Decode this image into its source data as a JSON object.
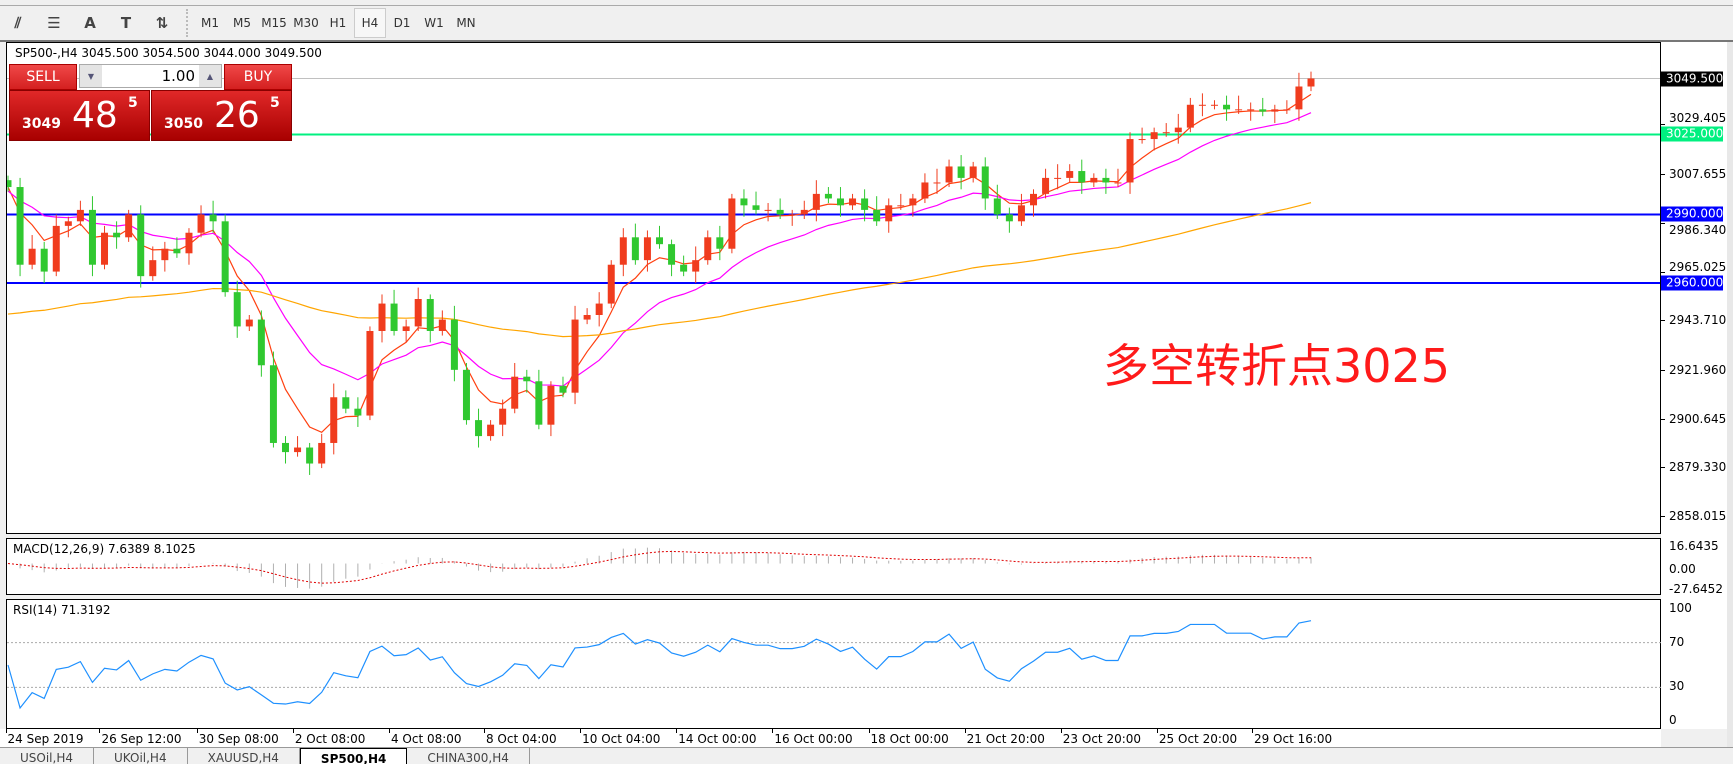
{
  "toolbar": {
    "icons": [
      "elliott-wave-icon",
      "fibonacci-fan-icon",
      "text-icon",
      "text-label-icon",
      "arrows-icon"
    ],
    "icon_glyphs": [
      "⫽",
      "☰",
      "A",
      "T",
      "⇅"
    ],
    "timeframes": [
      "M1",
      "M5",
      "M15",
      "M30",
      "H1",
      "H4",
      "D1",
      "W1",
      "MN"
    ],
    "active_timeframe": "H4"
  },
  "chart": {
    "title": "SP500-,H4  3045.500 3054.500 3044.000 3049.500",
    "annotation": "多空转折点3025",
    "trade_panel": {
      "sell_label": "SELL",
      "buy_label": "BUY",
      "volume": "1.00",
      "sell_price_main": "3049",
      "sell_price_big": "48",
      "sell_price_sup": "5",
      "buy_price_main": "3050",
      "buy_price_big": "26",
      "buy_price_sup": "5"
    },
    "price_axis": [
      "3029.405",
      "3007.655",
      "2986.340",
      "2965.025",
      "2943.710",
      "2921.960",
      "2900.645",
      "2879.330",
      "2858.015"
    ],
    "price_tags": [
      {
        "label": "3049.500",
        "value": 3049.5,
        "color": "#000000",
        "line": "#c0c0c0"
      },
      {
        "label": "3025.000",
        "value": 3025.0,
        "color": "#00f080",
        "line": "#00f080"
      },
      {
        "label": "2990.000",
        "value": 2990.0,
        "color": "#0000ff",
        "line": "#0000ff"
      },
      {
        "label": "2960.000",
        "value": 2960.0,
        "color": "#0000ff",
        "line": "#0000ff"
      }
    ],
    "colors": {
      "bull": "#f03c1e",
      "bear": "#30c830",
      "ma_fast": "#ff4010",
      "ma_mid": "#ff00ff",
      "ma_slow": "#ffa500"
    }
  },
  "chart_data": {
    "type": "candlestick",
    "symbol": "SP500-",
    "timeframe": "H4",
    "ylim": [
      2850,
      3056
    ],
    "x_labels": [
      "24 Sep 2019",
      "26 Sep 12:00",
      "30 Sep 08:00",
      "2 Oct 08:00",
      "4 Oct 08:00",
      "8 Oct 04:00",
      "10 Oct 04:00",
      "14 Oct 00:00",
      "16 Oct 00:00",
      "18 Oct 00:00",
      "21 Oct 20:00",
      "23 Oct 20:00",
      "25 Oct 20:00",
      "29 Oct 16:00"
    ],
    "closes": [
      3002,
      2968,
      2975,
      2965,
      2985,
      2987,
      2992,
      2968,
      2982,
      2980,
      2990,
      2963,
      2970,
      2975,
      2973,
      2982,
      2990,
      2987,
      2956,
      2941,
      2944,
      2924,
      2890,
      2886,
      2888,
      2881,
      2890,
      2910,
      2905,
      2902,
      2939,
      2951,
      2939,
      2941,
      2953,
      2939,
      2944,
      2922,
      2900,
      2893,
      2898,
      2905,
      2919,
      2917,
      2898,
      2915,
      2912,
      2944,
      2946,
      2951,
      2968,
      2980,
      2970,
      2980,
      2977,
      2968,
      2965,
      2970,
      2980,
      2975,
      2997,
      2994,
      2992,
      2992,
      2990,
      2990,
      2992,
      2999,
      2997,
      2994,
      2997,
      2992,
      2987,
      2994,
      2994,
      2997,
      3004,
      3004,
      3011,
      3006,
      3011,
      2997,
      2990,
      2987,
      2994,
      2999,
      3006,
      3006,
      3009,
      3004,
      3006,
      3004,
      3004,
      3023,
      3023,
      3026,
      3026,
      3028,
      3038,
      3038,
      3038,
      3036,
      3036,
      3036,
      3035,
      3036,
      3036,
      3046,
      3049.5
    ]
  },
  "macd": {
    "title": "MACD(12,26,9) 7.6389 8.1025",
    "axis": [
      "16.6435",
      "0.00",
      "-27.6452"
    ],
    "max": 16.6435,
    "min": -27.6452
  },
  "rsi": {
    "title": "RSI(14) 71.3192",
    "axis": [
      "100",
      "70",
      "30",
      "0"
    ],
    "levels": [
      70,
      30
    ],
    "color": "#1e90ff"
  },
  "tabs": [
    "USOil,H4",
    "UKOil,H4",
    "XAUUSD,H4",
    "SP500,H4",
    "CHINA300,H4"
  ],
  "active_tab": "SP500,H4"
}
